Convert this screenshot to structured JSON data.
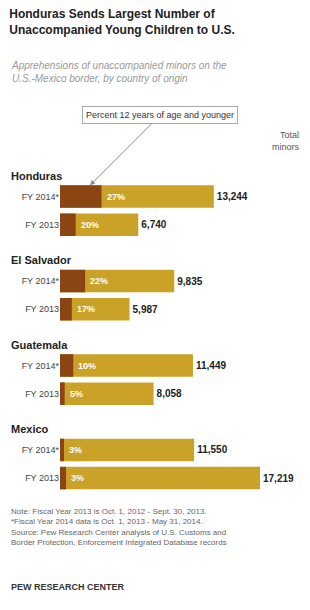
{
  "chart_data": {
    "type": "bar",
    "orientation": "horizontal",
    "title": "Honduras Sends Largest Number of\nUnaccompanied Young Children to U.S.",
    "subtitle": "Apprehensions of unaccompanied minors on the\nU.S.-Mexico border, by country of origin",
    "note": "Note: Fiscal Year 2013 is Oct. 1, 2012 - Sept. 30, 2013.\n*Fiscal Year 2014 data is Oct. 1, 2013 - May 31, 2014.\nSource: Pew Research Center analysis of U.S. Customs and\nBorder Protection, Enforcement Integrated Database records",
    "footer": "PEW RESEARCH CENTER",
    "categories": [
      [
        "Honduras",
        "FY 2014*"
      ],
      [
        "Honduras",
        "FY 2013"
      ],
      [
        "El Salvador",
        "FY 2014*"
      ],
      [
        "El Salvador",
        "FY 2013"
      ],
      [
        "Guatemala",
        "FY 2014*"
      ],
      [
        "Guatemala",
        "FY 2013"
      ],
      [
        "Mexico",
        "FY 2014*"
      ],
      [
        "Mexico",
        "FY 2013"
      ]
    ],
    "series": [
      {
        "name": "Total\nminors",
        "color": "#C9A227",
        "values": [
          13244,
          6740,
          9835,
          5987,
          11449,
          8058,
          11550,
          17219
        ],
        "value_labels": [
          "13,244",
          "6,740",
          "9,835",
          "5,987",
          "11,449",
          "8,058",
          "11,550",
          "17,219"
        ]
      },
      {
        "name": "Percent 12 years of age and younger",
        "color": "#8B4513",
        "values": [
          3575.88,
          1348,
          2163.7,
          1017.79,
          1144.9,
          402.9,
          346.5,
          516.57
        ]
      }
    ],
    "annotations": [
      {
        "category": 0,
        "text": "27%"
      },
      {
        "category": 1,
        "text": "20%"
      },
      {
        "category": 2,
        "text": "22%"
      },
      {
        "category": 3,
        "text": "17%"
      },
      {
        "category": 4,
        "text": "10%"
      },
      {
        "category": 5,
        "text": "5%"
      },
      {
        "category": 6,
        "text": "3%"
      },
      {
        "category": 7,
        "text": "3%"
      }
    ],
    "xlim": [
      0,
      17219
    ],
    "stacked": false,
    "data_labels": true,
    "grid": false,
    "tick_labels": "y"
  }
}
